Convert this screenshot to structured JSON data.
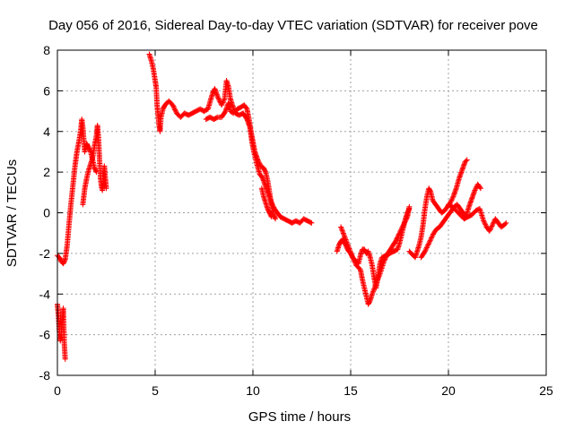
{
  "chart_data": {
    "type": "scatter",
    "title": "Day 056 of 2016, Sidereal Day-to-day VTEC variation (SDTVAR) for receiver pove",
    "xlabel": "GPS time / hours",
    "ylabel": "SDTVAR / TECUs",
    "xlim": [
      0,
      25
    ],
    "ylim": [
      -8,
      8
    ],
    "xticks": [
      "0",
      "5",
      "10",
      "15",
      "20",
      "25"
    ],
    "yticks": [
      "-8",
      "-6",
      "-4",
      "-2",
      "0",
      "2",
      "4",
      "6",
      "8"
    ],
    "grid": true,
    "marker": "+",
    "color": "#ff0000",
    "series": [
      {
        "points": [
          [
            0.0,
            -2.1
          ],
          [
            0.1,
            -2.2
          ],
          [
            0.2,
            -2.4
          ],
          [
            0.3,
            -2.5
          ],
          [
            0.4,
            -2.3
          ],
          [
            0.5,
            -1.6
          ],
          [
            0.6,
            -0.5
          ],
          [
            0.7,
            0.5
          ],
          [
            0.8,
            1.4
          ],
          [
            0.9,
            2.3
          ],
          [
            1.0,
            3.0
          ],
          [
            1.1,
            3.5
          ],
          [
            1.2,
            4.1
          ],
          [
            1.25,
            4.6
          ],
          [
            1.3,
            4.2
          ],
          [
            1.35,
            3.6
          ],
          [
            1.4,
            3.0
          ],
          [
            1.5,
            3.4
          ],
          [
            1.6,
            3.2
          ],
          [
            1.7,
            3.0
          ],
          [
            1.8,
            2.6
          ],
          [
            1.9,
            2.2
          ],
          [
            2.0,
            2.0
          ]
        ]
      },
      {
        "points": [
          [
            1.3,
            0.4
          ],
          [
            1.4,
            1.2
          ],
          [
            1.5,
            1.7
          ],
          [
            1.6,
            2.1
          ],
          [
            1.7,
            2.4
          ],
          [
            1.8,
            2.7
          ],
          [
            1.9,
            3.3
          ],
          [
            2.0,
            3.8
          ],
          [
            2.05,
            4.3
          ],
          [
            2.1,
            3.7
          ],
          [
            2.15,
            2.7
          ],
          [
            2.2,
            1.8
          ],
          [
            2.25,
            1.3
          ],
          [
            2.3,
            1.1
          ],
          [
            2.35,
            1.6
          ],
          [
            2.4,
            2.3
          ],
          [
            2.45,
            1.7
          ],
          [
            2.5,
            1.2
          ]
        ]
      },
      {
        "points": [
          [
            0.0,
            -4.5
          ],
          [
            0.05,
            -5.0
          ],
          [
            0.1,
            -5.8
          ],
          [
            0.15,
            -6.3
          ],
          [
            0.2,
            -6.0
          ],
          [
            0.25,
            -5.3
          ],
          [
            0.3,
            -4.7
          ],
          [
            0.35,
            -6.4
          ],
          [
            0.4,
            -7.2
          ]
        ]
      },
      {
        "points": [
          [
            4.7,
            7.8
          ],
          [
            4.8,
            7.5
          ],
          [
            4.9,
            7.1
          ],
          [
            5.0,
            6.5
          ],
          [
            5.05,
            6.2
          ],
          [
            5.1,
            5.3
          ],
          [
            5.15,
            4.8
          ],
          [
            5.2,
            4.3
          ],
          [
            5.25,
            4.0
          ],
          [
            5.3,
            4.7
          ],
          [
            5.4,
            5.1
          ],
          [
            5.5,
            5.3
          ],
          [
            5.6,
            5.4
          ],
          [
            5.7,
            5.5
          ],
          [
            5.9,
            5.3
          ],
          [
            6.1,
            4.9
          ],
          [
            6.3,
            4.7
          ],
          [
            6.5,
            4.9
          ],
          [
            6.7,
            4.8
          ],
          [
            6.9,
            4.9
          ],
          [
            7.1,
            5.0
          ],
          [
            7.3,
            5.1
          ],
          [
            7.5,
            5.0
          ],
          [
            7.7,
            5.1
          ],
          [
            7.85,
            5.6
          ],
          [
            7.95,
            5.9
          ],
          [
            8.05,
            6.1
          ],
          [
            8.2,
            5.7
          ],
          [
            8.4,
            5.3
          ],
          [
            8.55,
            5.6
          ],
          [
            8.65,
            6.5
          ],
          [
            8.75,
            6.2
          ],
          [
            8.85,
            5.6
          ],
          [
            8.95,
            5.3
          ],
          [
            9.1,
            4.9
          ],
          [
            9.3,
            4.8
          ],
          [
            9.5,
            4.9
          ],
          [
            9.7,
            4.6
          ],
          [
            9.85,
            4.2
          ],
          [
            9.95,
            3.5
          ],
          [
            10.05,
            3.0
          ],
          [
            10.2,
            2.4
          ],
          [
            10.35,
            1.9
          ],
          [
            10.5,
            1.7
          ],
          [
            10.65,
            1.3
          ],
          [
            10.8,
            0.9
          ],
          [
            10.95,
            0.5
          ],
          [
            11.1,
            0.2
          ],
          [
            11.25,
            0.0
          ],
          [
            11.4,
            -0.2
          ],
          [
            11.6,
            -0.3
          ],
          [
            11.8,
            -0.4
          ],
          [
            12.0,
            -0.5
          ],
          [
            12.2,
            -0.4
          ],
          [
            12.4,
            -0.5
          ],
          [
            12.6,
            -0.3
          ],
          [
            12.8,
            -0.4
          ],
          [
            13.0,
            -0.5
          ]
        ]
      },
      {
        "points": [
          [
            7.6,
            4.6
          ],
          [
            7.8,
            4.7
          ],
          [
            8.0,
            4.6
          ],
          [
            8.2,
            4.7
          ],
          [
            8.4,
            4.7
          ],
          [
            8.6,
            5.0
          ],
          [
            8.75,
            5.4
          ],
          [
            8.85,
            5.0
          ],
          [
            9.0,
            4.9
          ],
          [
            9.2,
            5.1
          ],
          [
            9.4,
            5.2
          ],
          [
            9.55,
            5.3
          ],
          [
            9.7,
            5.1
          ],
          [
            9.8,
            4.6
          ],
          [
            9.9,
            4.0
          ],
          [
            10.0,
            3.5
          ],
          [
            10.1,
            3.0
          ],
          [
            10.25,
            2.6
          ],
          [
            10.4,
            2.3
          ],
          [
            10.55,
            2.2
          ],
          [
            10.65,
            2.0
          ],
          [
            10.75,
            1.6
          ],
          [
            10.85,
            1.0
          ],
          [
            10.95,
            0.4
          ],
          [
            11.05,
            -0.1
          ],
          [
            11.15,
            -0.3
          ]
        ]
      },
      {
        "points": [
          [
            10.45,
            1.2
          ],
          [
            10.55,
            0.8
          ],
          [
            10.65,
            0.5
          ],
          [
            10.75,
            0.2
          ],
          [
            10.85,
            0.0
          ],
          [
            10.95,
            -0.2
          ]
        ]
      },
      {
        "points": [
          [
            14.3,
            -1.9
          ],
          [
            14.4,
            -1.6
          ],
          [
            14.5,
            -1.4
          ],
          [
            14.6,
            -1.3
          ],
          [
            14.7,
            -1.5
          ],
          [
            14.8,
            -1.7
          ],
          [
            14.9,
            -1.9
          ],
          [
            15.0,
            -2.0
          ],
          [
            15.1,
            -2.2
          ],
          [
            15.2,
            -2.3
          ],
          [
            15.3,
            -2.4
          ],
          [
            15.4,
            -2.5
          ],
          [
            15.5,
            -2.1
          ],
          [
            15.6,
            -1.8
          ],
          [
            15.7,
            -1.8
          ],
          [
            15.8,
            -2.0
          ],
          [
            15.9,
            -1.9
          ],
          [
            16.0,
            -2.2
          ],
          [
            16.1,
            -2.6
          ],
          [
            16.2,
            -3.2
          ],
          [
            16.3,
            -3.7
          ],
          [
            16.4,
            -3.1
          ],
          [
            16.5,
            -2.5
          ],
          [
            16.6,
            -2.2
          ],
          [
            16.8,
            -2.1
          ],
          [
            17.0,
            -2.0
          ],
          [
            17.2,
            -1.9
          ],
          [
            17.4,
            -1.8
          ],
          [
            17.5,
            -1.5
          ],
          [
            17.6,
            -1.1
          ],
          [
            17.7,
            -0.7
          ],
          [
            17.8,
            -0.3
          ],
          [
            17.9,
            0.0
          ],
          [
            18.0,
            0.2
          ]
        ]
      },
      {
        "points": [
          [
            14.5,
            -0.7
          ],
          [
            14.7,
            -1.2
          ],
          [
            14.9,
            -1.7
          ],
          [
            15.1,
            -2.2
          ],
          [
            15.3,
            -2.6
          ],
          [
            15.5,
            -2.8
          ],
          [
            15.6,
            -3.3
          ],
          [
            15.7,
            -3.7
          ],
          [
            15.8,
            -4.1
          ],
          [
            15.9,
            -4.5
          ],
          [
            16.0,
            -4.3
          ],
          [
            16.1,
            -4.0
          ],
          [
            16.3,
            -3.5
          ],
          [
            16.5,
            -3.0
          ],
          [
            16.7,
            -2.4
          ],
          [
            16.9,
            -2.0
          ],
          [
            17.1,
            -1.7
          ],
          [
            17.3,
            -1.4
          ],
          [
            17.5,
            -1.0
          ],
          [
            17.7,
            -0.6
          ],
          [
            17.9,
            -0.2
          ],
          [
            18.0,
            0.3
          ]
        ]
      },
      {
        "points": [
          [
            18.0,
            -1.9
          ],
          [
            18.1,
            -2.0
          ],
          [
            18.2,
            -2.1
          ],
          [
            18.3,
            -2.2
          ],
          [
            18.4,
            -1.9
          ],
          [
            18.5,
            -1.6
          ],
          [
            18.6,
            -1.2
          ],
          [
            18.7,
            -0.6
          ],
          [
            18.8,
            0.2
          ],
          [
            18.9,
            0.8
          ],
          [
            19.0,
            1.2
          ],
          [
            19.1,
            1.0
          ],
          [
            19.2,
            0.6
          ],
          [
            19.35,
            0.4
          ],
          [
            19.5,
            0.2
          ],
          [
            19.65,
            0.0
          ],
          [
            19.8,
            0.1
          ],
          [
            19.95,
            0.3
          ],
          [
            20.1,
            0.5
          ],
          [
            20.25,
            0.8
          ],
          [
            20.4,
            1.2
          ],
          [
            20.55,
            1.7
          ],
          [
            20.7,
            2.1
          ],
          [
            20.85,
            2.5
          ],
          [
            20.95,
            2.6
          ]
        ]
      },
      {
        "points": [
          [
            18.6,
            -2.2
          ],
          [
            18.8,
            -1.9
          ],
          [
            18.95,
            -1.6
          ],
          [
            19.1,
            -1.3
          ],
          [
            19.25,
            -1.0
          ],
          [
            19.4,
            -0.8
          ],
          [
            19.55,
            -0.7
          ],
          [
            19.7,
            -0.5
          ],
          [
            19.85,
            -0.3
          ],
          [
            20.0,
            -0.1
          ],
          [
            20.15,
            0.1
          ],
          [
            20.3,
            0.3
          ],
          [
            20.45,
            0.4
          ],
          [
            20.6,
            0.2
          ],
          [
            20.75,
            0.0
          ],
          [
            20.9,
            -0.2
          ],
          [
            21.05,
            0.3
          ],
          [
            21.2,
            0.7
          ],
          [
            21.35,
            1.1
          ],
          [
            21.5,
            1.4
          ],
          [
            21.65,
            1.2
          ]
        ]
      },
      {
        "points": [
          [
            20.0,
            0.4
          ],
          [
            20.2,
            0.3
          ],
          [
            20.4,
            0.1
          ],
          [
            20.6,
            -0.1
          ],
          [
            20.8,
            -0.3
          ],
          [
            21.0,
            -0.2
          ],
          [
            21.2,
            -0.1
          ],
          [
            21.4,
            0.1
          ],
          [
            21.6,
            0.2
          ],
          [
            21.8,
            -0.4
          ],
          [
            21.95,
            -0.7
          ],
          [
            22.1,
            -0.9
          ],
          [
            22.25,
            -0.6
          ],
          [
            22.4,
            -0.3
          ],
          [
            22.55,
            -0.5
          ],
          [
            22.7,
            -0.7
          ],
          [
            22.85,
            -0.6
          ],
          [
            22.95,
            -0.5
          ]
        ]
      }
    ]
  }
}
